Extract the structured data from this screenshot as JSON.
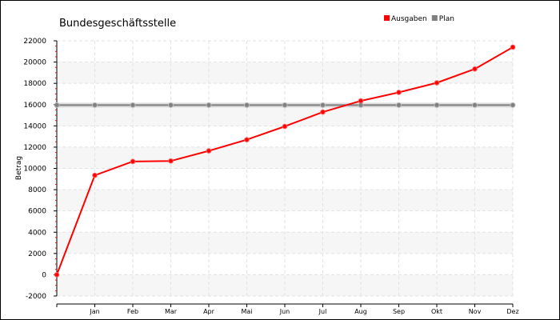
{
  "chart_data": {
    "type": "line",
    "title": "Bundesgeschäftsstelle",
    "xlabel": "",
    "ylabel": "Betrag",
    "categories": [
      "",
      "Jan",
      "Feb",
      "Mar",
      "Apr",
      "Mai",
      "Jun",
      "Jul",
      "Aug",
      "Sep",
      "Okt",
      "Nov",
      "Dez"
    ],
    "ylim": [
      -2000,
      22000
    ],
    "yticks": [
      -2000,
      0,
      2000,
      4000,
      6000,
      8000,
      10000,
      12000,
      14000,
      16000,
      18000,
      20000,
      22000
    ],
    "grid": true,
    "legend_position": "top-right",
    "series": [
      {
        "name": "Ausgaben",
        "color": "#ff0000",
        "values": [
          0,
          9350,
          10650,
          10700,
          11650,
          12700,
          13950,
          15300,
          16350,
          17150,
          18050,
          19350,
          21400
        ]
      },
      {
        "name": "Plan",
        "color": "#808080",
        "values": [
          15950,
          15950,
          15950,
          15950,
          15950,
          15950,
          15950,
          15950,
          15950,
          15950,
          15950,
          15950,
          15950
        ]
      }
    ]
  }
}
